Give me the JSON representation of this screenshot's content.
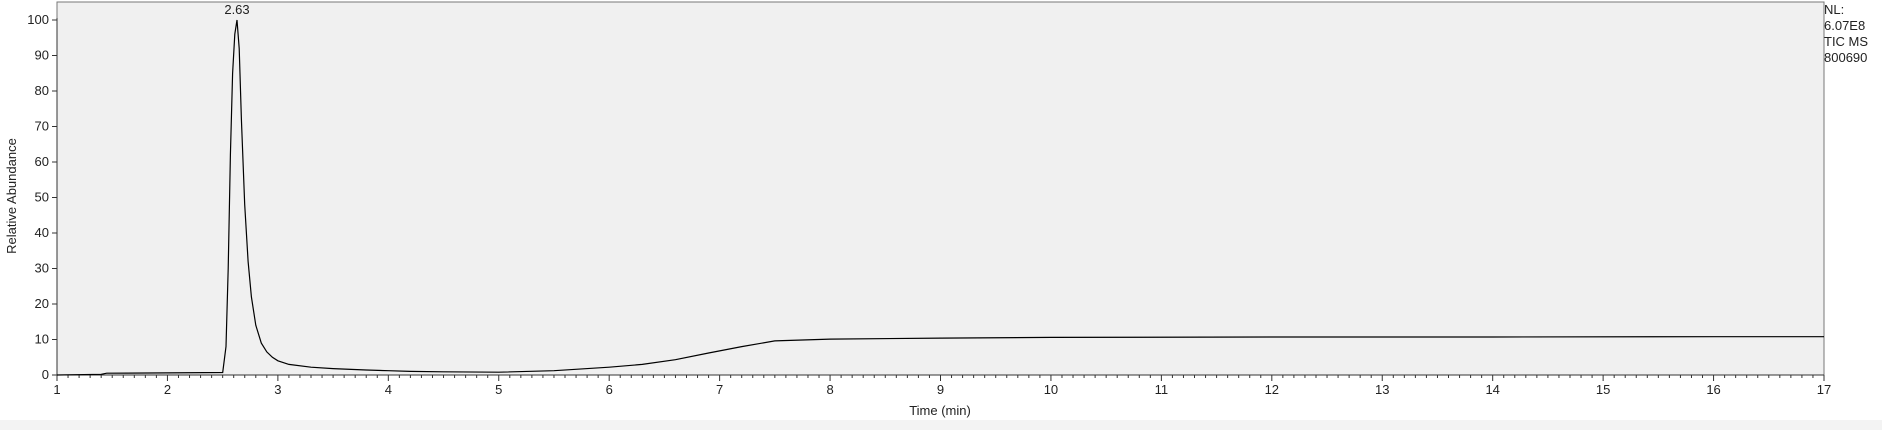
{
  "chart_data": {
    "type": "line",
    "xlabel": "Time (min)",
    "ylabel": "Relative Abundance",
    "xlim": [
      1,
      17
    ],
    "ylim": [
      0,
      100
    ],
    "x_ticks": [
      "1",
      "2",
      "3",
      "4",
      "5",
      "6",
      "7",
      "8",
      "9",
      "10",
      "11",
      "12",
      "13",
      "14",
      "15",
      "16",
      "17"
    ],
    "y_ticks": [
      "0",
      "10",
      "20",
      "30",
      "40",
      "50",
      "60",
      "70",
      "80",
      "90",
      "100"
    ],
    "peak_label": "2.63",
    "peak_label_x": 2.63,
    "peak_label_y": 100,
    "info_lines": [
      "NL:",
      "6.07E8",
      "TIC  MS",
      "800690"
    ],
    "series": [
      {
        "color": "#000000",
        "x": [
          1.0,
          1.4,
          1.45,
          2.0,
          2.5,
          2.53,
          2.55,
          2.57,
          2.59,
          2.61,
          2.63,
          2.65,
          2.67,
          2.7,
          2.73,
          2.76,
          2.8,
          2.85,
          2.9,
          2.95,
          3.0,
          3.1,
          3.3,
          3.5,
          3.8,
          4.0,
          4.2,
          4.5,
          5.0,
          5.5,
          6.0,
          6.3,
          6.6,
          6.9,
          7.2,
          7.5,
          8.0,
          9.0,
          10.0,
          12.0,
          14.0,
          16.0,
          17.0
        ],
        "y": [
          0.0,
          0.2,
          0.5,
          0.6,
          0.7,
          8.0,
          30.0,
          62.0,
          85.0,
          96.0,
          100.0,
          92.0,
          72.0,
          48.0,
          32.0,
          22.0,
          14.0,
          9.0,
          6.5,
          5.0,
          4.0,
          3.0,
          2.2,
          1.8,
          1.4,
          1.2,
          1.0,
          0.9,
          0.8,
          1.2,
          2.2,
          3.0,
          4.3,
          6.2,
          8.0,
          9.6,
          10.1,
          10.4,
          10.6,
          10.7,
          10.7,
          10.8,
          10.8
        ]
      }
    ]
  }
}
